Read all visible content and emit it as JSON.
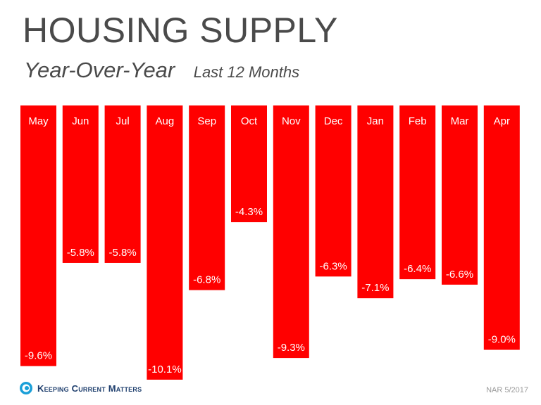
{
  "header": {
    "title": "HOUSING SUPPLY",
    "subtitle": "Year-Over-Year",
    "period": "Last 12 Months"
  },
  "footer": {
    "brand": "Keeping Current Matters",
    "source": "NAR 5/2017"
  },
  "colors": {
    "bar": "#ff0000",
    "title": "#4a4a4a",
    "brand": "#1f3f6e"
  },
  "chart_data": {
    "type": "bar",
    "orientation": "vertical-downward",
    "categories": [
      "May",
      "Jun",
      "Jul",
      "Aug",
      "Sep",
      "Oct",
      "Nov",
      "Dec",
      "Jan",
      "Feb",
      "Mar",
      "Apr"
    ],
    "values": [
      -9.6,
      -5.8,
      -5.8,
      -10.1,
      -6.8,
      -4.3,
      -9.3,
      -6.3,
      -7.1,
      -6.4,
      -6.6,
      -9.0
    ],
    "value_labels": [
      "-9.6%",
      "-5.8%",
      "-5.8%",
      "-10.1%",
      "-6.8%",
      "-4.3%",
      "-9.3%",
      "-6.3%",
      "-7.1%",
      "-6.4%",
      "-6.6%",
      "-9.0%"
    ],
    "ylim": [
      0,
      -10.1
    ],
    "grid": false,
    "legend": "none"
  }
}
